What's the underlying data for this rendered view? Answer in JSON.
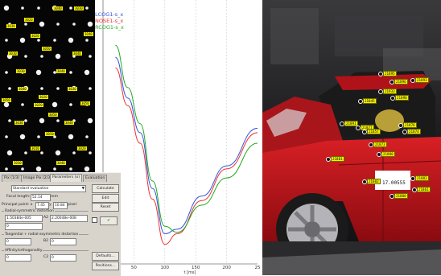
{
  "calibration": {
    "marker_tags": [
      "3040",
      "3030",
      "3020",
      "3010",
      "3050",
      "3040",
      "3030",
      "3040",
      "3020",
      "3030",
      "3040",
      "3050",
      "3020",
      "3030",
      "3040",
      "3050",
      "3010",
      "3020",
      "3030",
      "3040",
      "3050",
      "3020",
      "3030",
      "3040",
      "3050"
    ]
  },
  "chart": {
    "legend": [
      {
        "label": "LCOG1-s_x",
        "color": "#3355dd"
      },
      {
        "label": "NOSE1-s_x",
        "color": "#ee3333"
      },
      {
        "label": "RCOG1-s_x",
        "color": "#22aa22"
      }
    ],
    "x_ticks": [
      "50",
      "100",
      "150",
      "200",
      "25"
    ],
    "x_axis_label": "t [ms]"
  },
  "chart_data": {
    "type": "line",
    "xlabel": "t [ms]",
    "ylabel": "",
    "xlim": [
      0,
      250
    ],
    "series": [
      {
        "name": "LCOG1-s_x",
        "x": [
          20,
          40,
          60,
          80,
          100,
          120,
          160,
          200,
          250
        ],
        "y": [
          0.62,
          0.35,
          0.12,
          -0.25,
          -0.55,
          -0.52,
          -0.3,
          -0.1,
          0.15
        ]
      },
      {
        "name": "NOSE1-s_x",
        "x": [
          20,
          40,
          60,
          80,
          100,
          120,
          160,
          200,
          250
        ],
        "y": [
          0.55,
          0.3,
          0.05,
          -0.32,
          -0.62,
          -0.55,
          -0.33,
          -0.12,
          0.12
        ]
      },
      {
        "name": "RCOG1-s_x",
        "x": [
          20,
          40,
          60,
          80,
          100,
          120,
          160,
          200,
          250
        ],
        "y": [
          0.7,
          0.42,
          0.18,
          -0.2,
          -0.5,
          -0.54,
          -0.36,
          -0.18,
          0.05
        ]
      }
    ]
  },
  "dialog": {
    "tabs": [
      "Pix (1/3)",
      "Image Pix (2/3)",
      "Parameters (x)",
      "Evaluation"
    ],
    "evaluation_value": "Standard evaluation",
    "calculate": "Calculate",
    "edit": "Edit",
    "reset": "Reset",
    "focal_length_label": "Focal length:",
    "focal_length_value": "52.14",
    "focal_length_unit": "mm",
    "principal_point_label": "Principal point: x",
    "pp_x": "7.45",
    "pp_y_label": "y",
    "pp_y": "10.84",
    "pp_unit": "pixel",
    "radial_group": "Radial-symmetric distortion",
    "a1_value": "1.50384e-005",
    "a2_label": "A2",
    "a2_value": "2.20048e-008",
    "a3_value": "0",
    "tangential_group": "Tangential + radial-asymmetric distortion",
    "b1_value": "0",
    "b2_label": "B2",
    "b2_value": "0",
    "affinity_group": "Affinity/orthogonality",
    "c1_value": "0",
    "c2_label": "C2",
    "c2_value": "0",
    "defaults": "Defaults...",
    "positions": "Positions..."
  },
  "photo": {
    "tags": [
      "21893",
      "21895",
      "21896",
      "21933",
      "21845",
      "21890",
      "21891",
      "21877",
      "21857",
      "21876",
      "21874",
      "21873",
      "21880",
      "21881",
      "21882",
      "21883",
      "21861",
      "21880",
      "17.00555"
    ],
    "date_sticker": "17.00555"
  },
  "colors": {
    "lcog": "#3355dd",
    "nose": "#ee3333",
    "rcog": "#22aa22",
    "target_tag": "#f4f000",
    "car_body": "#c0151b"
  }
}
